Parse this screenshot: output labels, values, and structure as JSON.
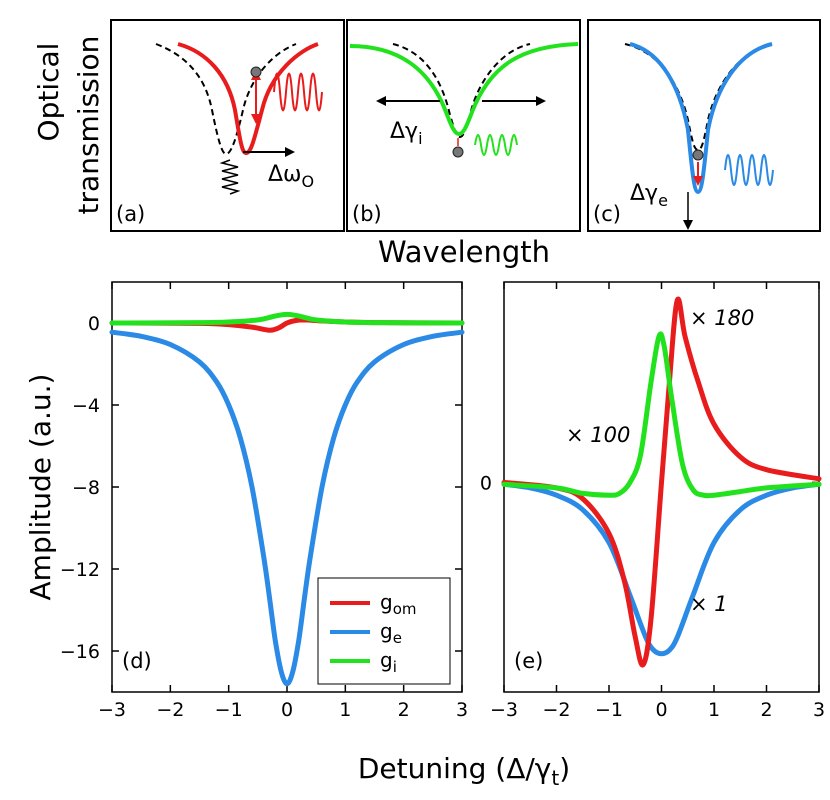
{
  "colors": {
    "om": "#e81c1c",
    "e": "#2a8ae6",
    "i": "#22e21e",
    "dash": "#000000"
  },
  "top": {
    "ylabel_line1": "Optical",
    "ylabel_line2": "transmission",
    "xlabel": "Wavelength",
    "panels": [
      {
        "label": "(a)",
        "annotation": "Δω",
        "annotation_sub": "O"
      },
      {
        "label": "(b)",
        "annotation": "Δγ",
        "annotation_sub": "i"
      },
      {
        "label": "(c)",
        "annotation": "Δγ",
        "annotation_sub": "e"
      }
    ]
  },
  "chart_data": [
    {
      "type": "line",
      "panel_label": "(d)",
      "xlabel": "Detuning (Δ/γ",
      "xlabel_sub": "t",
      "xlabel_close": ")",
      "ylabel": "Amplitude (a.u.)",
      "xlim": [
        -3,
        3
      ],
      "ylim": [
        -18,
        2
      ],
      "xticks": [
        "−3",
        "−2",
        "−1",
        "0",
        "1",
        "2",
        "3"
      ],
      "yticks": [
        {
          "v": 0,
          "t": "0"
        },
        {
          "v": -4,
          "t": "−4"
        },
        {
          "v": -8,
          "t": "−8"
        },
        {
          "v": -12,
          "t": "−12"
        },
        {
          "v": -16,
          "t": "−16"
        }
      ],
      "series": [
        {
          "name": "g",
          "sub": "om",
          "key": "om",
          "x": [
            -3,
            -1.5,
            -1,
            -0.6,
            -0.3,
            -0.15,
            0,
            0.15,
            0.3,
            0.6,
            1,
            1.5,
            3
          ],
          "y": [
            0,
            -0.02,
            -0.08,
            -0.2,
            -0.35,
            -0.25,
            0,
            0.12,
            0.15,
            0.1,
            0.05,
            0.02,
            0
          ]
        },
        {
          "name": "g",
          "sub": "e",
          "key": "e",
          "x": [
            -3,
            -2.5,
            -2,
            -1.5,
            -1.2,
            -1,
            -0.8,
            -0.6,
            -0.4,
            -0.3,
            -0.2,
            -0.1,
            0,
            0.1,
            0.2,
            0.3,
            0.4,
            0.6,
            0.8,
            1,
            1.2,
            1.5,
            2,
            2.5,
            3
          ],
          "y": [
            -0.45,
            -0.65,
            -1.05,
            -1.9,
            -2.9,
            -4.0,
            -5.6,
            -8.0,
            -11.4,
            -13.4,
            -15.5,
            -17.0,
            -17.6,
            -17.0,
            -15.5,
            -13.4,
            -11.4,
            -8.0,
            -5.6,
            -4.0,
            -2.9,
            -1.9,
            -1.05,
            -0.65,
            -0.45
          ]
        },
        {
          "name": "g",
          "sub": "i",
          "key": "i",
          "x": [
            -3,
            -1.5,
            -1,
            -0.6,
            -0.4,
            -0.2,
            0,
            0.2,
            0.4,
            0.6,
            1,
            1.5,
            3
          ],
          "y": [
            0,
            0.02,
            0.05,
            0.12,
            0.2,
            0.34,
            0.42,
            0.34,
            0.2,
            0.12,
            0.05,
            0.02,
            0
          ]
        }
      ]
    },
    {
      "type": "line",
      "panel_label": "(e)",
      "xlim": [
        -3,
        3
      ],
      "ylim": [
        -1.15,
        1.1
      ],
      "xticks": [
        "−3",
        "−2",
        "−1",
        "0",
        "1",
        "2",
        "3"
      ],
      "yticks": [
        {
          "v": 0,
          "t": "0"
        }
      ],
      "series": [
        {
          "name": "g_om",
          "key": "om",
          "scale_label": "× 180",
          "x": [
            -3,
            -2,
            -1.5,
            -1,
            -0.7,
            -0.5,
            -0.35,
            -0.2,
            0,
            0.15,
            0.3,
            0.45,
            0.7,
            1,
            1.5,
            2,
            3
          ],
          "y": [
            0,
            -0.03,
            -0.09,
            -0.28,
            -0.55,
            -0.85,
            -1.0,
            -0.75,
            0.0,
            0.55,
            1.0,
            0.8,
            0.55,
            0.32,
            0.14,
            0.07,
            0.02
          ]
        },
        {
          "name": "g_e",
          "key": "e",
          "scale_label": "× 1",
          "x": [
            -3,
            -2.5,
            -2,
            -1.5,
            -1,
            -0.6,
            -0.3,
            -0.15,
            0,
            0.15,
            0.3,
            0.6,
            1,
            1.5,
            2,
            2.5,
            3
          ],
          "y": [
            -0.01,
            -0.03,
            -0.07,
            -0.15,
            -0.33,
            -0.62,
            -0.85,
            -0.92,
            -0.94,
            -0.92,
            -0.85,
            -0.62,
            -0.33,
            -0.15,
            -0.07,
            -0.03,
            -0.01
          ]
        },
        {
          "name": "g_i",
          "key": "i",
          "scale_label": "× 100",
          "x": [
            -3,
            -2,
            -1.5,
            -1,
            -0.8,
            -0.6,
            -0.4,
            -0.2,
            -0.05,
            0.05,
            0.2,
            0.4,
            0.6,
            0.8,
            1,
            1.5,
            2,
            3
          ],
          "y": [
            -0.01,
            -0.03,
            -0.06,
            -0.07,
            -0.06,
            0.0,
            0.15,
            0.55,
            0.8,
            0.75,
            0.45,
            0.1,
            -0.04,
            -0.07,
            -0.07,
            -0.05,
            -0.03,
            -0.01
          ]
        }
      ]
    }
  ]
}
